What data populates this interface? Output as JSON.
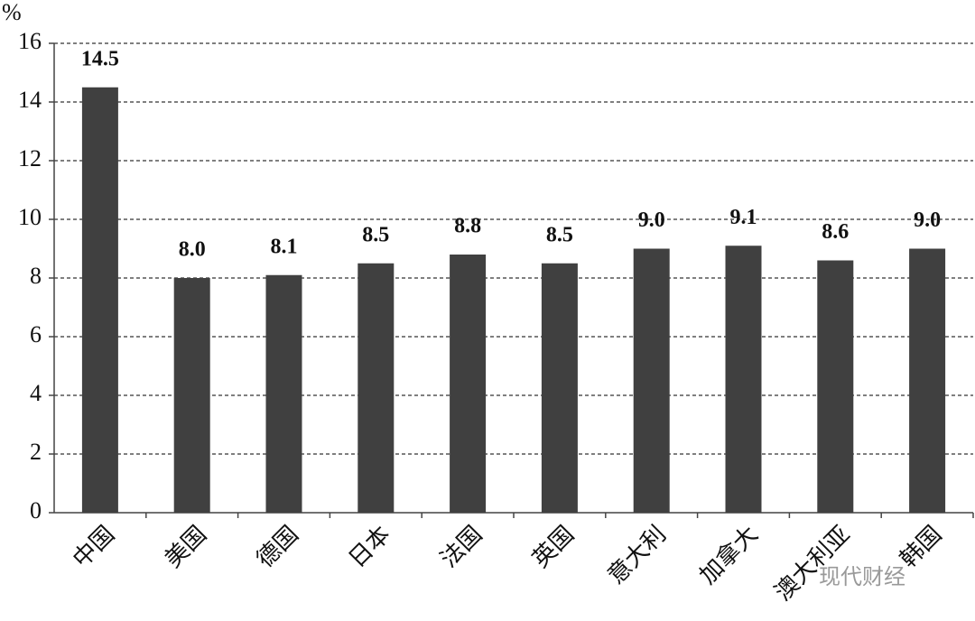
{
  "chart_data": {
    "type": "bar",
    "y_label": "%",
    "categories": [
      "中国",
      "美国",
      "德国",
      "日本",
      "法国",
      "英国",
      "意大利",
      "加拿大",
      "澳大利亚",
      "韩国"
    ],
    "values": [
      14.5,
      8.0,
      8.1,
      8.5,
      8.8,
      8.5,
      9.0,
      9.1,
      8.6,
      9.0
    ],
    "value_labels": [
      "14.5",
      "8.0",
      "8.1",
      "8.5",
      "8.8",
      "8.5",
      "9.0",
      "9.1",
      "8.6",
      "9.0"
    ],
    "color": "#404040",
    "ylim": [
      0,
      16
    ],
    "yticks": [
      0,
      2,
      4,
      6,
      8,
      10,
      12,
      14,
      16
    ],
    "grid": true,
    "watermark": "现代财经"
  }
}
